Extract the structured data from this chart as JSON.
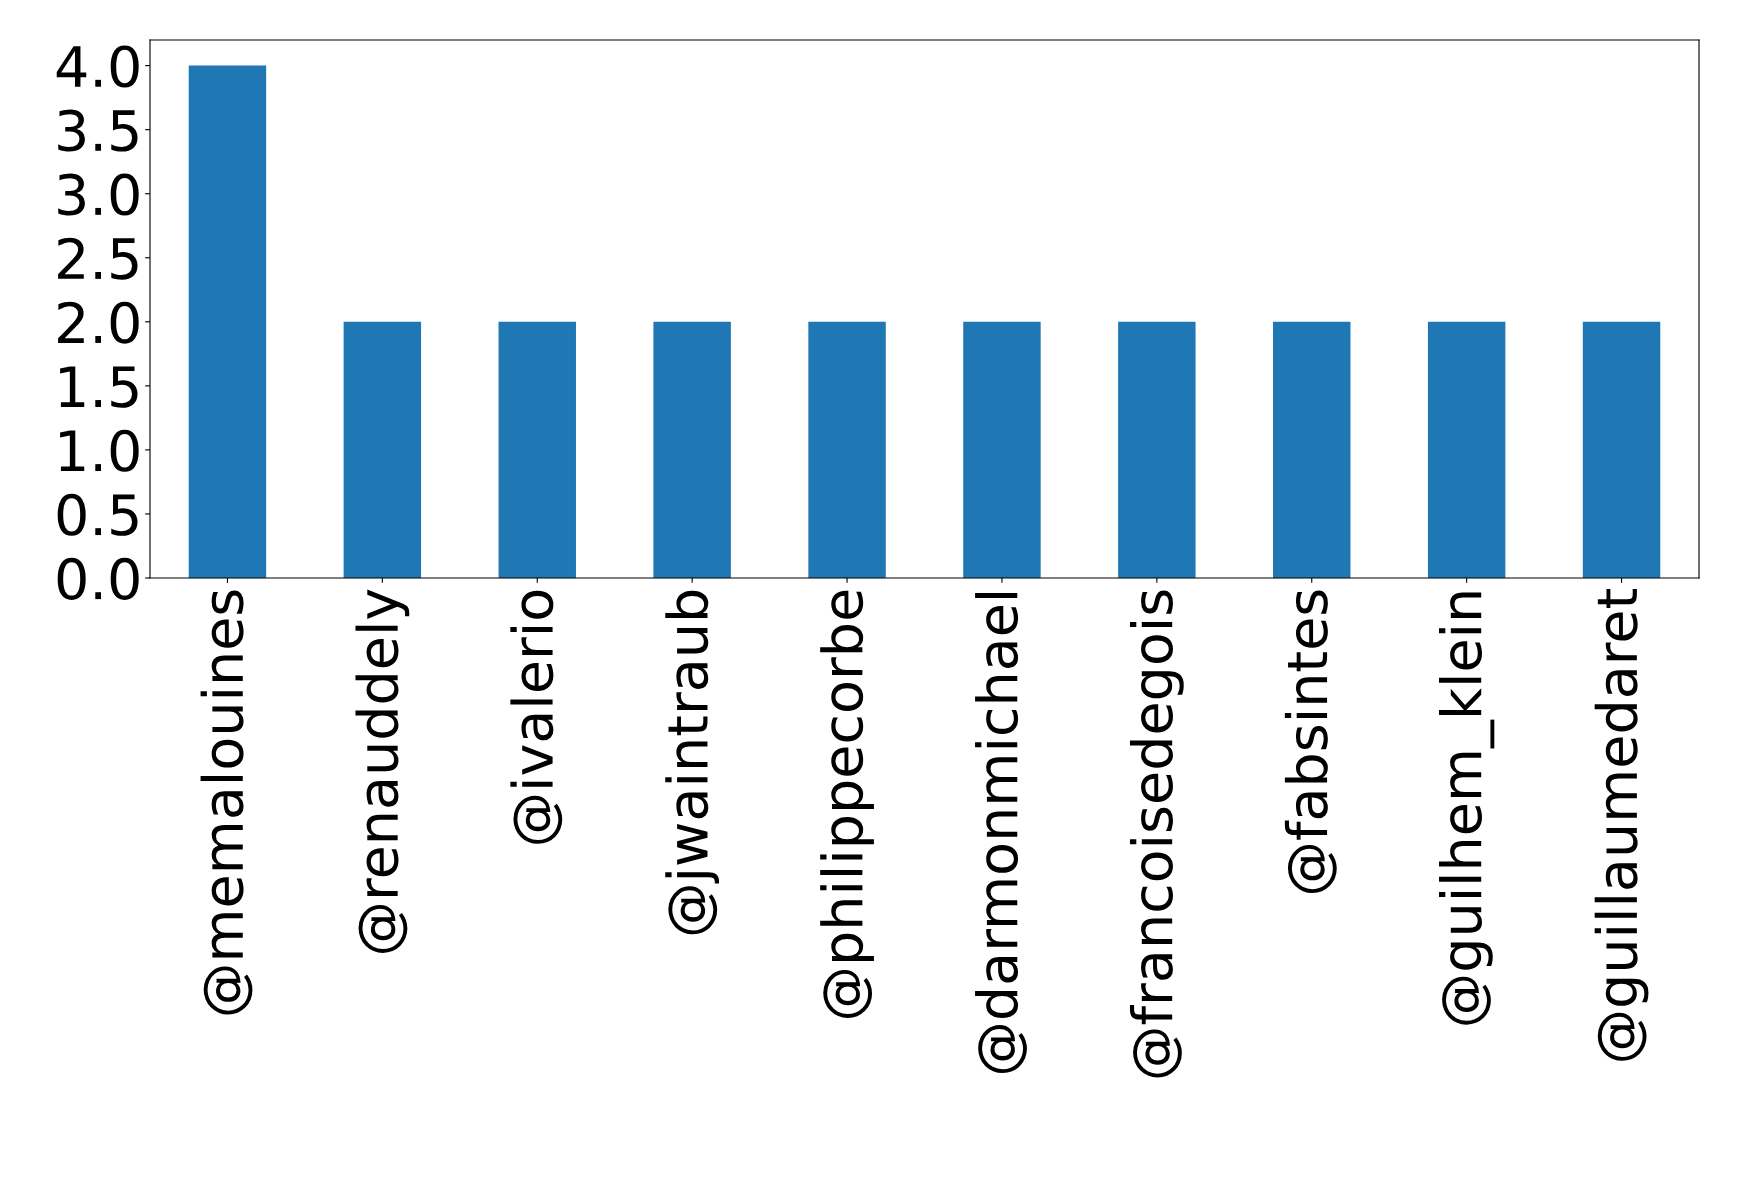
{
  "chart_data": {
    "type": "bar",
    "categories": [
      "@memalouines",
      "@renauddely",
      "@ivalerio",
      "@jwaintraub",
      "@philippecorbe",
      "@darmonmichael",
      "@francoisedegois",
      "@fabsintes",
      "@guilhem_klein",
      "@guillaumedaret"
    ],
    "values": [
      4,
      2,
      2,
      2,
      2,
      2,
      2,
      2,
      2,
      2
    ],
    "color": "#1f77b4",
    "ylim": [
      0,
      4.2
    ],
    "yticks": [
      {
        "value": 0,
        "label": "0.0"
      },
      {
        "value": 0.5,
        "label": "0.5"
      },
      {
        "value": 1,
        "label": "1.0"
      },
      {
        "value": 1.5,
        "label": "1.5"
      },
      {
        "value": 2,
        "label": "2.0"
      },
      {
        "value": 2.5,
        "label": "2.5"
      },
      {
        "value": 3,
        "label": "3.0"
      },
      {
        "value": 3.5,
        "label": "3.5"
      },
      {
        "value": 4,
        "label": "4.0"
      }
    ],
    "grid": false,
    "legend": false
  }
}
